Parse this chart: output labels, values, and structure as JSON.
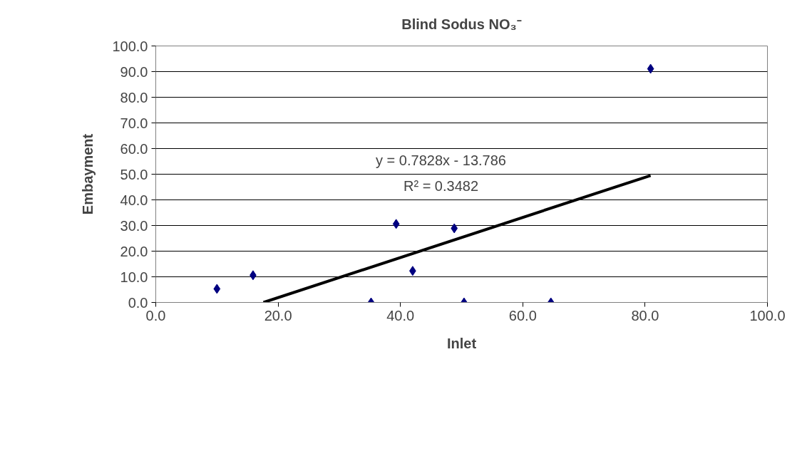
{
  "chart_data": {
    "type": "scatter",
    "title": "Blind Sodus NO₃⁻",
    "xlabel": "Inlet",
    "ylabel": "Embayment",
    "series": [
      {
        "color": "#000080",
        "marker": "diamond",
        "x": [
          10.0,
          15.9,
          35.2,
          39.3,
          42.0,
          48.8,
          50.4,
          64.6,
          80.9
        ],
        "values": [
          5.3,
          10.6,
          0.0,
          30.6,
          12.3,
          28.9,
          0.0,
          0.0,
          91.1
        ]
      },
      {
        "type": "line",
        "color": "#000000",
        "marker": "none",
        "x": [
          17.6,
          80.9
        ],
        "values": [
          0.0,
          49.5
        ]
      }
    ],
    "annotations": [
      "y = 0.7828x - 13.786",
      "R² = 0.3482"
    ],
    "xlim": [
      0,
      100
    ],
    "ylim": [
      0,
      100
    ],
    "xticks": [
      {
        "value": 0,
        "label": "0.0"
      },
      {
        "value": 20,
        "label": "20.0"
      },
      {
        "value": 40,
        "label": "40.0"
      },
      {
        "value": 60,
        "label": "60.0"
      },
      {
        "value": 80,
        "label": "80.0"
      },
      {
        "value": 100,
        "label": "100.0"
      }
    ],
    "yticks": [
      {
        "value": 0,
        "label": "0.0"
      },
      {
        "value": 10,
        "label": "10.0"
      },
      {
        "value": 20,
        "label": "20.0"
      },
      {
        "value": 30,
        "label": "30.0"
      },
      {
        "value": 40,
        "label": "40.0"
      },
      {
        "value": 50,
        "label": "50.0"
      },
      {
        "value": 60,
        "label": "60.0"
      },
      {
        "value": 70,
        "label": "70.0"
      },
      {
        "value": 80,
        "label": "80.0"
      },
      {
        "value": 90,
        "label": "90.0"
      },
      {
        "value": 100,
        "label": "100.0"
      }
    ],
    "grid": "y"
  }
}
